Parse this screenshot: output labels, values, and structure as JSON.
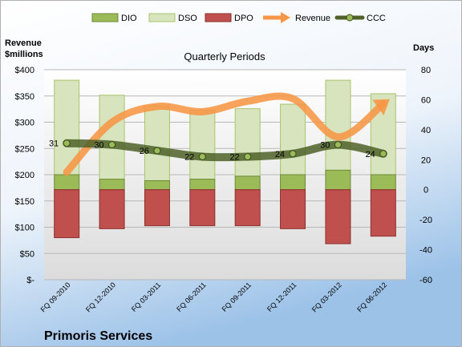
{
  "chart_data": {
    "type": "bar",
    "title": "Quarterly Periods",
    "company": "Primoris Services",
    "left_axis": {
      "label_line1": "Revenue",
      "label_line2": "$millions",
      "ylim": [
        0,
        400
      ],
      "ticks": [
        0,
        50,
        100,
        150,
        200,
        250,
        300,
        350,
        400
      ],
      "tick_labels": [
        "$-",
        "$50",
        "$100",
        "$150",
        "$200",
        "$250",
        "$300",
        "$350",
        "$400"
      ]
    },
    "right_axis": {
      "label": "Days",
      "ylim": [
        -60,
        80
      ],
      "ticks": [
        -60,
        -40,
        -20,
        0,
        20,
        40,
        60,
        80
      ],
      "tick_labels": [
        "-60",
        "-40",
        "-20",
        "0",
        "20",
        "40",
        "60",
        "80"
      ]
    },
    "categories": [
      "FQ 09-2010",
      "FQ 12-2010",
      "FQ 03-2011",
      "FQ 06-2011",
      "FQ 09-2011",
      "FQ 12-2011",
      "FQ 03-2012",
      "FQ 06-2012"
    ],
    "legend": [
      "DIO",
      "DSO",
      "DPO",
      "Revenue",
      "CCC"
    ],
    "series": [
      {
        "name": "DIO",
        "kind": "bar_days",
        "values": [
          10,
          7,
          6,
          7,
          9,
          10,
          13,
          10
        ]
      },
      {
        "name": "DSO",
        "kind": "bar_days",
        "values": [
          63,
          56,
          50,
          46,
          45,
          47,
          60,
          54
        ]
      },
      {
        "name": "DPO",
        "kind": "bar_days_negative",
        "values": [
          -32,
          -26,
          -24,
          -24,
          -24,
          -26,
          -36,
          -31
        ]
      },
      {
        "name": "Revenue",
        "kind": "line_dollars",
        "values": [
          205,
          300,
          330,
          320,
          340,
          345,
          272,
          335
        ]
      },
      {
        "name": "CCC",
        "kind": "line_days",
        "values": [
          31,
          30,
          26,
          22,
          22,
          24,
          30,
          24
        ]
      }
    ],
    "colors": {
      "DIO": "#9bbb59",
      "DSO": "#d7e4bd",
      "DPO": "#c0504d",
      "Revenue": "#f79646",
      "CCC": "#4f6228"
    }
  }
}
